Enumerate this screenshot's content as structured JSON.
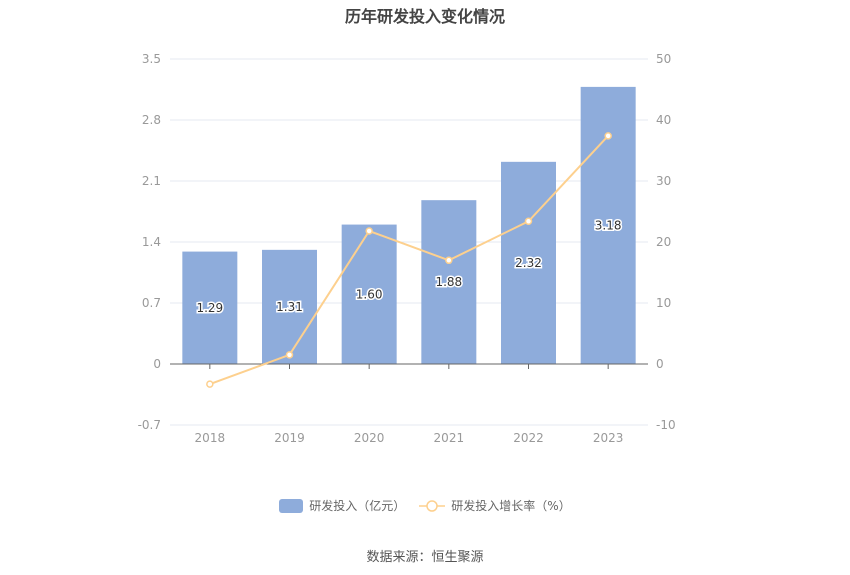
{
  "title": "历年研发投入变化情况",
  "legend": {
    "bar_label": "研发投入（亿元）",
    "line_label": "研发投入增长率（%）"
  },
  "source": "数据来源：恒生聚源",
  "colors": {
    "bar": "#8eacdb",
    "line": "#fdd08e",
    "grid": "#e6e9f0",
    "axis": "#666666",
    "tick_text": "#999999"
  },
  "chart_data": {
    "type": "bar+line",
    "title": "历年研发投入变化情况",
    "categories": [
      "2018",
      "2019",
      "2020",
      "2021",
      "2022",
      "2023"
    ],
    "series": [
      {
        "name": "研发投入（亿元）",
        "type": "bar",
        "axis": "left",
        "values": [
          1.29,
          1.31,
          1.6,
          1.88,
          2.32,
          3.18
        ],
        "labels": [
          "1.29",
          "1.31",
          "1.60",
          "1.88",
          "2.32",
          "3.18"
        ]
      },
      {
        "name": "研发投入增长率（%）",
        "type": "line",
        "axis": "right",
        "values": [
          -3.3,
          1.5,
          21.8,
          17.0,
          23.4,
          37.4
        ]
      }
    ],
    "left_axis": {
      "ticks": [
        "3.5",
        "2.8",
        "2.1",
        "1.4",
        "0.7",
        "0",
        "-0.7"
      ],
      "range": [
        -0.7,
        3.5
      ]
    },
    "right_axis": {
      "ticks": [
        "50",
        "40",
        "30",
        "20",
        "10",
        "0",
        "-10"
      ],
      "range": [
        -10,
        50
      ]
    },
    "grid": true,
    "legend_position": "bottom"
  }
}
